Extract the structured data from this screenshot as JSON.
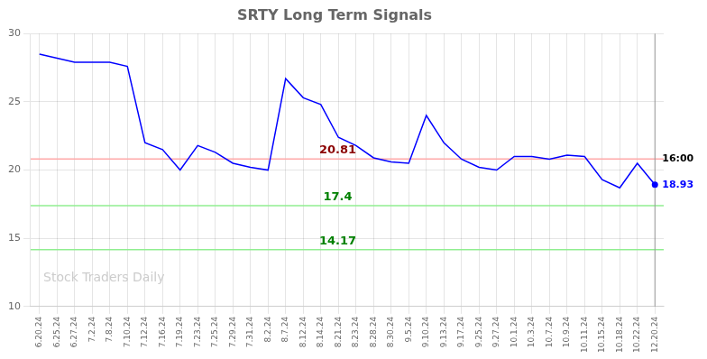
{
  "chart_data": {
    "type": "line",
    "title": "SRTY Long Term Signals",
    "categories": [
      "6.20.24",
      "6.25.24",
      "6.27.24",
      "7.2.24",
      "7.8.24",
      "7.10.24",
      "7.12.24",
      "7.16.24",
      "7.19.24",
      "7.23.24",
      "7.25.24",
      "7.29.24",
      "7.31.24",
      "8.2.24",
      "8.7.24",
      "8.12.24",
      "8.14.24",
      "8.21.24",
      "8.23.24",
      "8.28.24",
      "8.30.24",
      "9.5.24",
      "9.10.24",
      "9.13.24",
      "9.17.24",
      "9.25.24",
      "9.27.24",
      "10.1.24",
      "10.3.24",
      "10.7.24",
      "10.9.24",
      "10.11.24",
      "10.15.24",
      "10.18.24",
      "10.22.24",
      "12.20.24"
    ],
    "series": [
      {
        "color": "blue",
        "values": [
          28.5,
          28.2,
          27.9,
          27.9,
          27.9,
          27.6,
          22.0,
          21.5,
          20.0,
          21.8,
          21.3,
          20.5,
          20.2,
          20.0,
          26.7,
          25.3,
          24.8,
          22.4,
          21.8,
          20.9,
          20.6,
          20.5,
          24.0,
          22.0,
          20.8,
          20.2,
          20.0,
          21.0,
          21.0,
          20.8,
          21.1,
          21.0,
          19.3,
          18.7,
          20.5,
          18.93
        ]
      }
    ],
    "ylim": [
      10,
      30
    ],
    "yticks": [
      10,
      15,
      20,
      25,
      30
    ],
    "grid": true,
    "annotations": [
      {
        "type": "hline",
        "y": 20.81,
        "color": "#ffaaaa",
        "text": "20.81",
        "text_color": "darkred"
      },
      {
        "type": "hline",
        "y": 17.4,
        "color": "#90ee90",
        "text": "17.4",
        "text_color": "green"
      },
      {
        "type": "hline",
        "y": 14.17,
        "color": "#90ee90",
        "text": "14.17",
        "text_color": "green"
      },
      {
        "type": "vline",
        "x": "12.20.24",
        "color": "#999999"
      },
      {
        "type": "point",
        "x": "12.20.24",
        "y": 18.93,
        "color": "blue"
      },
      {
        "type": "text",
        "x": "12.20.24",
        "y": 20.81,
        "text": "16:00",
        "color": "black"
      },
      {
        "type": "text",
        "x": "12.20.24",
        "y": 18.93,
        "text": "18.93",
        "color": "blue"
      },
      {
        "type": "watermark",
        "text": "Stock Traders Daily",
        "color": "#cccccc"
      }
    ]
  }
}
